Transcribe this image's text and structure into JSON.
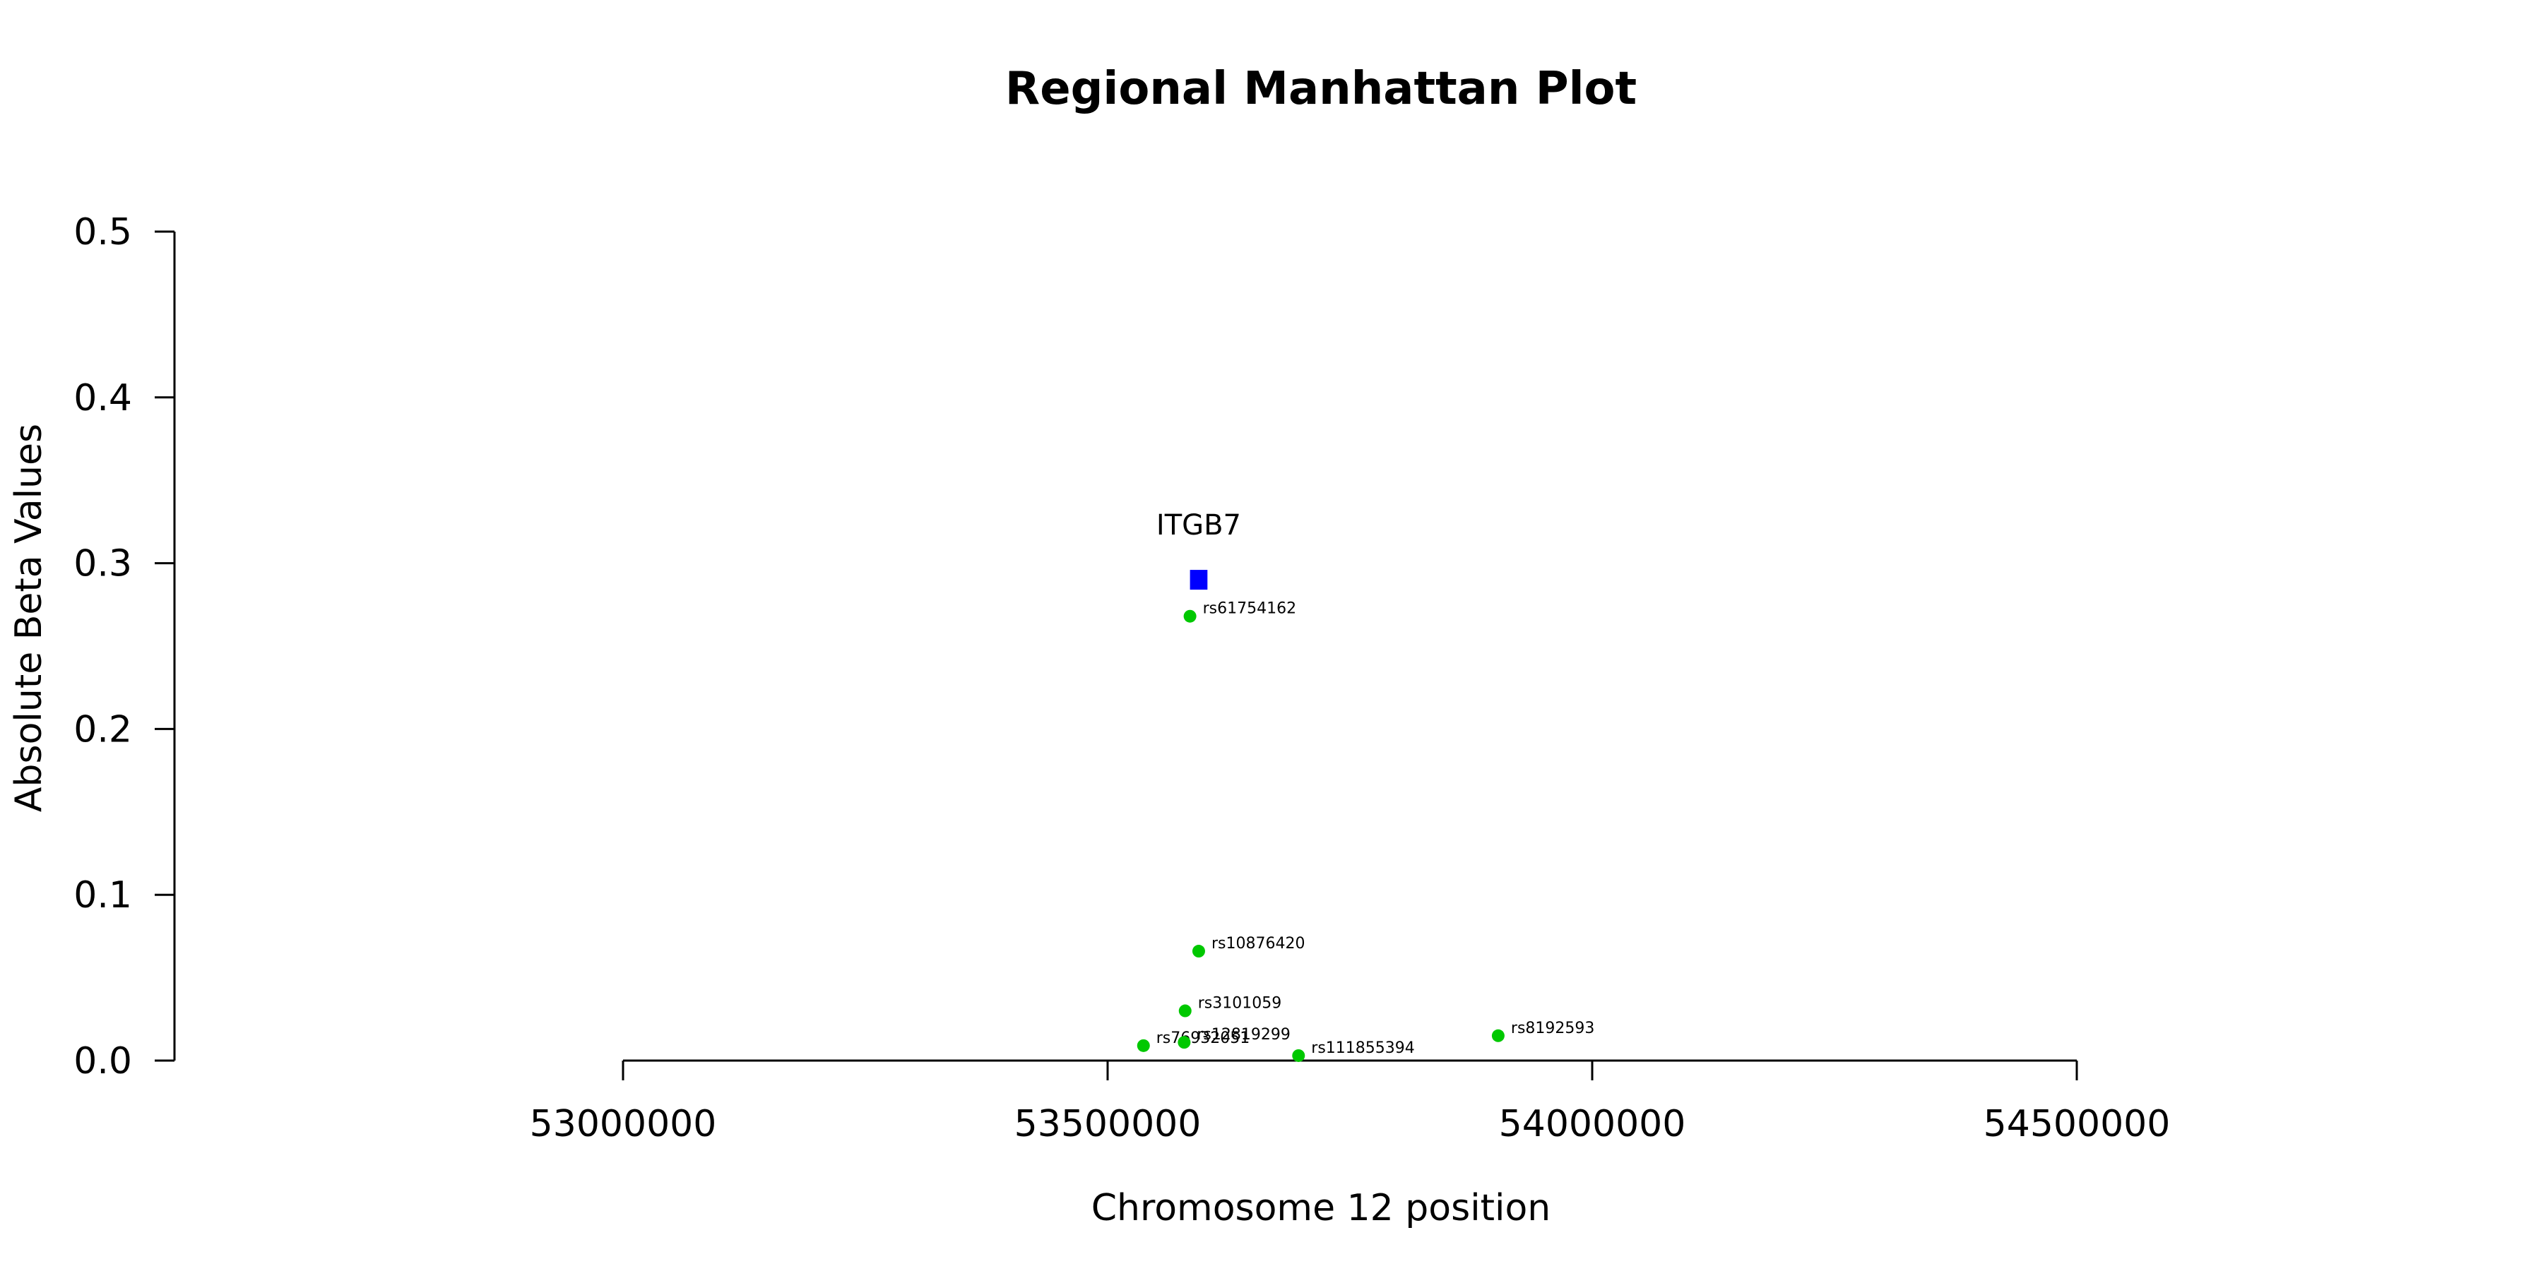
{
  "chart_data": {
    "type": "scatter",
    "title": "Regional Manhattan Plot",
    "xlabel": "Chromosome 12 position",
    "ylabel": "Absolute Beta Values",
    "xlim": [
      53000000,
      54500000
    ],
    "ylim": [
      0,
      0.5
    ],
    "x_ticks": [
      53000000,
      53500000,
      54000000,
      54500000
    ],
    "x_tick_labels": [
      "53000000",
      "53500000",
      "54000000",
      "54500000"
    ],
    "y_ticks": [
      0,
      0.1,
      0.2,
      0.3,
      0.4,
      0.5
    ],
    "y_tick_labels": [
      "0.0",
      "0.1",
      "0.2",
      "0.3",
      "0.4",
      "0.5"
    ],
    "grid": false,
    "point_color": "#00c800",
    "points": [
      {
        "snp": "rs61754162",
        "x": 53585000,
        "y": 0.268
      },
      {
        "snp": "rs10876420",
        "x": 53594000,
        "y": 0.066
      },
      {
        "snp": "rs3101059",
        "x": 53580000,
        "y": 0.03
      },
      {
        "snp": "rs76932051",
        "x": 53537000,
        "y": 0.009
      },
      {
        "snp": "rs12819299",
        "x": 53579000,
        "y": 0.011
      },
      {
        "snp": "rs111855394",
        "x": 53697000,
        "y": 0.003
      },
      {
        "snp": "rs8192593",
        "x": 53903000,
        "y": 0.015
      }
    ],
    "gene": {
      "name": "ITGB7",
      "start": 53585000,
      "end": 53603000,
      "y": 0.29,
      "color": "#0000ff"
    }
  }
}
